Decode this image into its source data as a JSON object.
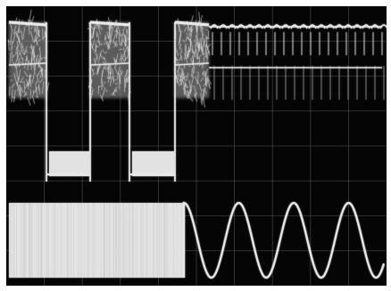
{
  "photo": {
    "subject": "oscilloscope-screen",
    "colors": {
      "screen": "#050505",
      "trace": "#e8e8e8",
      "trace_dim": "#9a9a9a",
      "graticule": "#6a6a6a",
      "bezel": "#ffffff"
    },
    "graticule": {
      "divisions_x": 10,
      "divisions_y": 8
    }
  }
}
